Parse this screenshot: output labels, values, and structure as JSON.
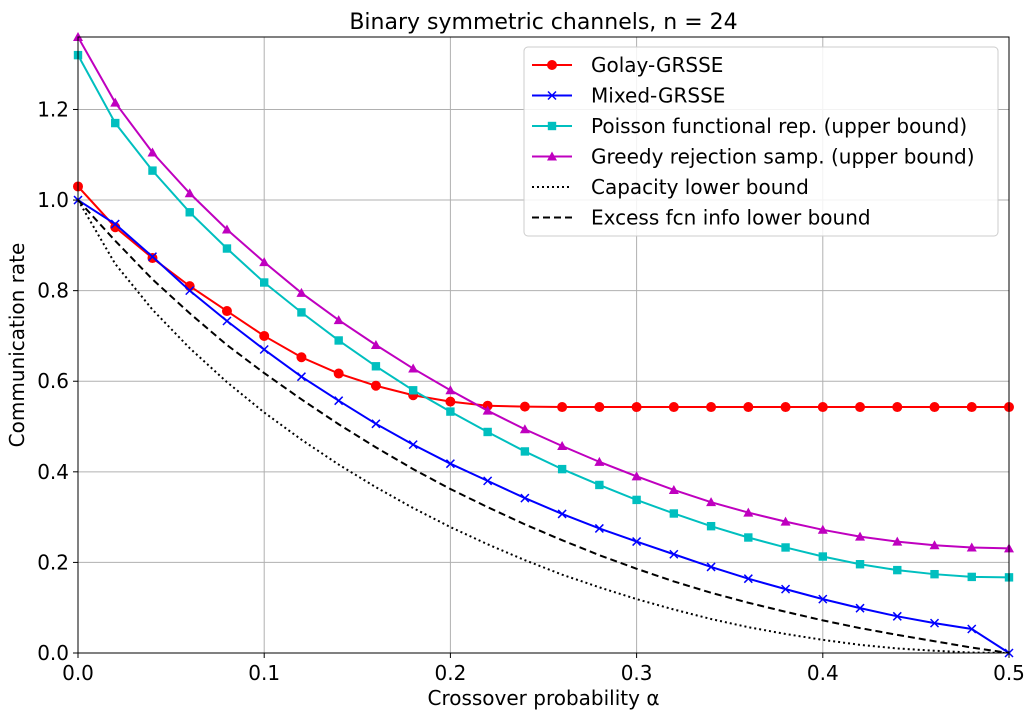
{
  "chart_data": {
    "type": "line",
    "title": "Binary symmetric channels, n = 24",
    "xlabel": "Crossover probability α",
    "ylabel": "Communication rate",
    "xlim": [
      0,
      0.5
    ],
    "ylim": [
      0,
      1.36
    ],
    "xticks": [
      0.0,
      0.1,
      0.2,
      0.3,
      0.4,
      0.5
    ],
    "xtick_labels": [
      "0.0",
      "0.1",
      "0.2",
      "0.3",
      "0.4",
      "0.5"
    ],
    "yticks": [
      0.0,
      0.2,
      0.4,
      0.6,
      0.8,
      1.0,
      1.2
    ],
    "ytick_labels": [
      "0.0",
      "0.2",
      "0.4",
      "0.6",
      "0.8",
      "1.0",
      "1.2"
    ],
    "grid": true,
    "legend_position": "top-right",
    "x": [
      0.0,
      0.02,
      0.04,
      0.06,
      0.08,
      0.1,
      0.12,
      0.14,
      0.16,
      0.18,
      0.2,
      0.22,
      0.24,
      0.26,
      0.28,
      0.3,
      0.32,
      0.34,
      0.36,
      0.38,
      0.4,
      0.42,
      0.44,
      0.46,
      0.48,
      0.5
    ],
    "series": [
      {
        "name": "Golay-GRSSE",
        "color": "#ff0000",
        "marker": "circle",
        "linestyle": "solid",
        "values": [
          1.03,
          0.94,
          0.872,
          0.81,
          0.755,
          0.7,
          0.653,
          0.617,
          0.59,
          0.569,
          0.555,
          0.546,
          0.544,
          0.543,
          0.543,
          0.543,
          0.543,
          0.543,
          0.543,
          0.543,
          0.543,
          0.543,
          0.543,
          0.543,
          0.543,
          0.543
        ]
      },
      {
        "name": "Mixed-GRSSE",
        "color": "#0000ff",
        "marker": "x",
        "linestyle": "solid",
        "values": [
          1.0,
          0.947,
          0.875,
          0.8,
          0.733,
          0.67,
          0.61,
          0.557,
          0.506,
          0.46,
          0.418,
          0.38,
          0.342,
          0.307,
          0.275,
          0.246,
          0.218,
          0.19,
          0.164,
          0.141,
          0.119,
          0.099,
          0.081,
          0.066,
          0.053,
          0.0
        ]
      },
      {
        "name": "Poisson functional rep. (upper bound)",
        "color": "#00bfbf",
        "marker": "square",
        "linestyle": "solid",
        "values": [
          1.32,
          1.17,
          1.065,
          0.973,
          0.893,
          0.818,
          0.752,
          0.69,
          0.633,
          0.58,
          0.533,
          0.488,
          0.445,
          0.406,
          0.371,
          0.338,
          0.308,
          0.28,
          0.255,
          0.233,
          0.213,
          0.196,
          0.183,
          0.174,
          0.168,
          0.167
        ]
      },
      {
        "name": "Greedy rejection samp. (upper bound)",
        "color": "#bf00bf",
        "marker": "triangle",
        "linestyle": "solid",
        "values": [
          1.36,
          1.215,
          1.105,
          1.015,
          0.935,
          0.863,
          0.795,
          0.735,
          0.68,
          0.628,
          0.58,
          0.535,
          0.494,
          0.457,
          0.422,
          0.39,
          0.36,
          0.333,
          0.31,
          0.29,
          0.272,
          0.257,
          0.246,
          0.238,
          0.233,
          0.231
        ]
      },
      {
        "name": "Capacity lower bound",
        "color": "#000000",
        "marker": "none",
        "linestyle": "dotted",
        "values": [
          1.0,
          0.859,
          0.758,
          0.673,
          0.598,
          0.531,
          0.471,
          0.416,
          0.366,
          0.32,
          0.278,
          0.24,
          0.205,
          0.173,
          0.145,
          0.119,
          0.096,
          0.075,
          0.057,
          0.042,
          0.029,
          0.018,
          0.01,
          0.005,
          0.001,
          0.0
        ]
      },
      {
        "name": "Excess fcn info lower bound",
        "color": "#000000",
        "marker": "none",
        "linestyle": "dashed",
        "values": [
          1.0,
          0.91,
          0.825,
          0.75,
          0.68,
          0.618,
          0.56,
          0.505,
          0.454,
          0.406,
          0.362,
          0.322,
          0.284,
          0.249,
          0.216,
          0.186,
          0.158,
          0.133,
          0.111,
          0.091,
          0.072,
          0.055,
          0.04,
          0.026,
          0.012,
          0.0
        ]
      }
    ]
  }
}
